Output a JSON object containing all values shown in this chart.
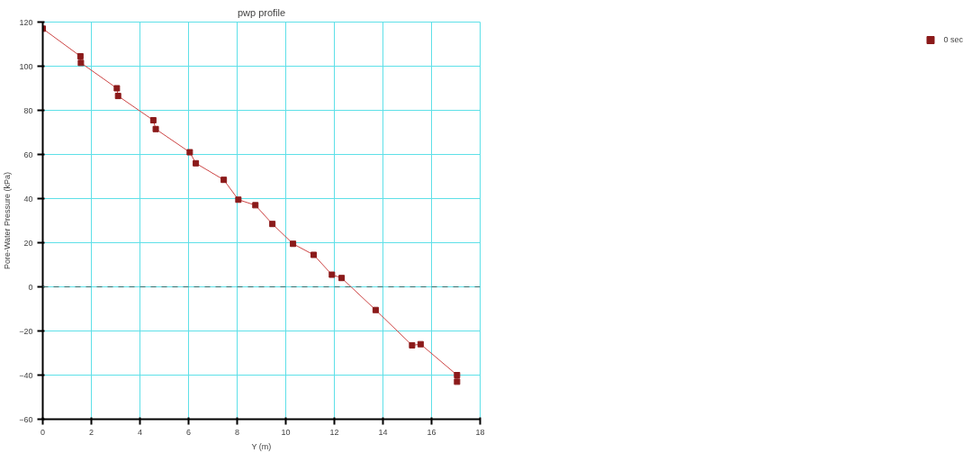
{
  "chart_data": {
    "type": "line",
    "title": "pwp profile",
    "xlabel": "Y (m)",
    "ylabel": "Pore-Water Pressure (kPa)",
    "x": [
      0,
      1.55,
      1.57,
      3.05,
      3.1,
      4.55,
      4.65,
      6.05,
      6.3,
      7.45,
      8.05,
      8.75,
      9.45,
      10.3,
      11.15,
      11.9,
      12.3,
      13.7,
      15.2,
      15.55,
      17.05,
      17.05
    ],
    "series": [
      {
        "name": "0 sec",
        "color": "#8b1a1a",
        "values": [
          117,
          104.5,
          101.5,
          90,
          86.5,
          75.5,
          71.5,
          61,
          56,
          48.5,
          39.5,
          37,
          28.5,
          19.5,
          14.5,
          5.5,
          4,
          -10.5,
          -26.5,
          -26,
          -40,
          -43
        ]
      }
    ],
    "xlim": [
      0,
      18
    ],
    "xticks": [
      0,
      2,
      4,
      6,
      8,
      10,
      12,
      14,
      16,
      18
    ],
    "ylim": [
      -60,
      120
    ],
    "yticks": [
      -60,
      -40,
      -20,
      0,
      20,
      40,
      60,
      80,
      100,
      120
    ],
    "ref_lines": [
      {
        "axis": "y",
        "value": 0,
        "label": null,
        "color": "#2f6f6f",
        "line_style": "dashed"
      }
    ],
    "grid": true,
    "legend": "right",
    "marker": "square",
    "line_style": "solid"
  }
}
